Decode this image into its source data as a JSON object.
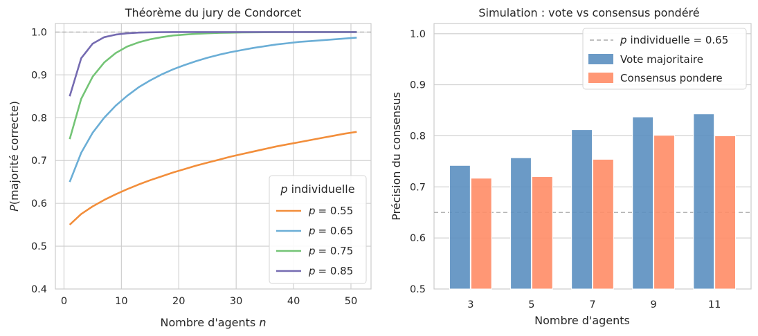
{
  "chart_data": [
    {
      "type": "line",
      "title": "Théorème du jury de Condorcet",
      "xlabel": "Nombre d'agents",
      "xlabel_var": "n",
      "ylabel_var": "P",
      "ylabel": "(majorité correcte)",
      "xlim": [
        -1.5,
        53.5
      ],
      "ylim": [
        0.4,
        1.02
      ],
      "xticks": [
        0,
        10,
        20,
        30,
        40,
        50
      ],
      "yticks": [
        0.4,
        0.5,
        0.6,
        0.7,
        0.8,
        0.9,
        1.0
      ],
      "reference_line": {
        "y": 1.0,
        "color": "#aaaaaa",
        "style": "dashed"
      },
      "legend": {
        "title_var": "p",
        "title": "individuelle",
        "position": "lower right",
        "label_prefix": "p"
      },
      "x": [
        1,
        3,
        5,
        7,
        9,
        11,
        13,
        15,
        17,
        19,
        21,
        23,
        25,
        27,
        29,
        31,
        33,
        35,
        37,
        39,
        41,
        43,
        45,
        47,
        49,
        51
      ],
      "series": [
        {
          "name": "= 0.55",
          "color": "#f28e3b",
          "values": [
            0.55,
            0.575,
            0.593,
            0.608,
            0.621,
            0.633,
            0.644,
            0.654,
            0.663,
            0.672,
            0.68,
            0.688,
            0.695,
            0.702,
            0.709,
            0.715,
            0.721,
            0.727,
            0.733,
            0.738,
            0.743,
            0.748,
            0.753,
            0.758,
            0.763,
            0.767
          ]
        },
        {
          "name": "= 0.65",
          "color": "#6baed6",
          "values": [
            0.65,
            0.718,
            0.765,
            0.8,
            0.828,
            0.851,
            0.871,
            0.887,
            0.901,
            0.913,
            0.923,
            0.932,
            0.94,
            0.947,
            0.953,
            0.958,
            0.963,
            0.967,
            0.971,
            0.974,
            0.977,
            0.979,
            0.981,
            0.983,
            0.985,
            0.987
          ]
        },
        {
          "name": "= 0.75",
          "color": "#74c476",
          "values": [
            0.75,
            0.844,
            0.896,
            0.929,
            0.951,
            0.966,
            0.976,
            0.983,
            0.988,
            0.992,
            0.994,
            0.996,
            0.997,
            0.998,
            0.9985,
            0.999,
            0.9993,
            0.9995,
            0.9997,
            0.9998,
            0.9998,
            0.9999,
            0.9999,
            1.0,
            1.0,
            1.0
          ]
        },
        {
          "name": "= 0.85",
          "color": "#756bb1",
          "values": [
            0.85,
            0.939,
            0.973,
            0.988,
            0.994,
            0.997,
            0.9987,
            0.9994,
            0.9997,
            0.9999,
            1.0,
            1.0,
            1.0,
            1.0,
            1.0,
            1.0,
            1.0,
            1.0,
            1.0,
            1.0,
            1.0,
            1.0,
            1.0,
            1.0,
            1.0,
            1.0
          ]
        }
      ]
    },
    {
      "type": "bar",
      "title": "Simulation : vote vs consensus pondéré",
      "xlabel": "Nombre d'agents",
      "ylabel": "Précision du consensus",
      "ylim": [
        0.5,
        1.02
      ],
      "yticks": [
        0.5,
        0.6,
        0.7,
        0.8,
        0.9,
        1.0
      ],
      "categories": [
        "3",
        "5",
        "7",
        "9",
        "11"
      ],
      "reference_line": {
        "y": 0.65,
        "color": "#aaaaaa",
        "style": "dashed",
        "label_var": "p",
        "label": "individuelle = 0.65"
      },
      "legend": {
        "position": "upper right"
      },
      "series": [
        {
          "name": "Vote majoritaire",
          "color": "#5b8fc0",
          "values": [
            0.742,
            0.757,
            0.812,
            0.837,
            0.843
          ]
        },
        {
          "name": "Consensus pondere",
          "color": "#ff8c66",
          "values": [
            0.717,
            0.72,
            0.754,
            0.801,
            0.8
          ]
        }
      ]
    }
  ]
}
